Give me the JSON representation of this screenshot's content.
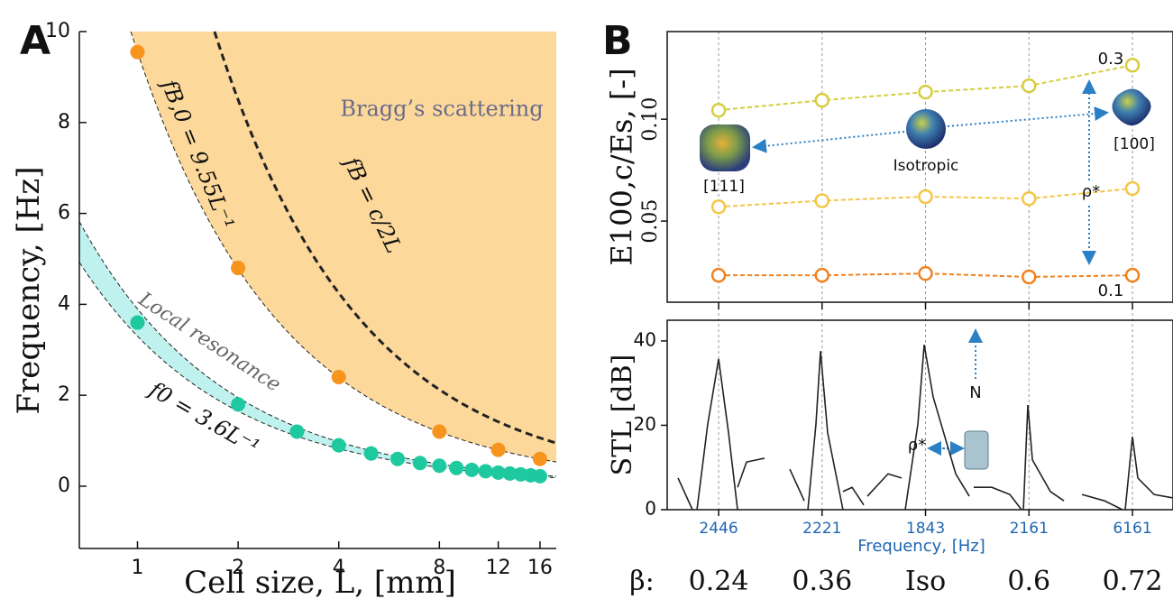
{
  "chart_data": [
    {
      "type": "scatter",
      "panel_label": "A",
      "xlabel": "Cell size, L, [mm]",
      "ylabel": "Frequency, [Hz]",
      "log_x": true,
      "xlim": [
        0.67,
        17.9
      ],
      "ylim": [
        -1.37,
        10
      ],
      "xticks": [
        1,
        2,
        4,
        8,
        12,
        16
      ],
      "yticks": [
        0,
        2,
        4,
        6,
        8,
        10
      ],
      "region_label": "Bragg’s scattering",
      "series": [
        {
          "color": "#f7941d",
          "x": [
            1,
            2,
            4,
            8,
            12,
            16
          ],
          "values": [
            9.55,
            4.8,
            2.4,
            1.2,
            0.8,
            0.6
          ]
        },
        {
          "color": "#1ec9a0",
          "x": [
            1,
            2,
            3,
            4,
            5,
            6,
            7,
            8,
            9,
            10,
            11,
            12,
            13,
            14,
            15,
            16
          ],
          "values": [
            3.6,
            1.8,
            1.2,
            0.9,
            0.72,
            0.6,
            0.51,
            0.45,
            0.4,
            0.36,
            0.33,
            0.3,
            0.28,
            0.26,
            0.24,
            0.22
          ]
        }
      ],
      "curves": [
        {
          "label": "fB,0 = 9.55L⁻¹",
          "coefficient": 9.55,
          "fill": "#fcd89b"
        },
        {
          "label": "fB = c/2L",
          "coefficient": 17
        }
      ],
      "band": {
        "label": "Local resonance",
        "formula_label": "f0 = 3.6L⁻¹",
        "upper": 3.9,
        "lower": 3.3,
        "fill": "#bff1ee"
      }
    },
    {
      "type": "line",
      "panel_label": "B",
      "ylabel": "E100,c/Es, [-]",
      "x": [
        0,
        1,
        2,
        3,
        4
      ],
      "xlim": [
        -0.497,
        4.392
      ],
      "ylim": [
        0.0102,
        0.143
      ],
      "yticks": [
        0.05,
        {
          "value": 0.1,
          "label": "0.10"
        }
      ],
      "annotations": [
        "[111]",
        "Isotropic",
        "[100]",
        "ρ*"
      ],
      "series": [
        {
          "name": "0.3",
          "color": "#d6cd3e",
          "values": [
            0.1044,
            0.1093,
            0.1133,
            0.1164,
            0.1265
          ]
        },
        {
          "color": "#f3c645",
          "values": [
            0.057,
            0.06,
            0.062,
            0.061,
            0.066
          ]
        },
        {
          "name": "0.1",
          "color": "#f0821e",
          "values": [
            0.0234,
            0.0234,
            0.0243,
            0.0226,
            0.0234
          ]
        }
      ]
    },
    {
      "type": "line",
      "ylabel": "STL [dB]",
      "xlabel": "Frequency, [Hz]",
      "xlim": [
        -0.497,
        4.392
      ],
      "ylim": [
        0,
        44.9
      ],
      "yticks": [
        0,
        20,
        40
      ],
      "xticks": [
        {
          "value": 0,
          "label": "2446"
        },
        {
          "value": 1,
          "label": "2221"
        },
        {
          "value": 2,
          "label": "1843"
        },
        {
          "value": 3,
          "label": "2161"
        },
        {
          "value": 4,
          "label": "6161"
        }
      ],
      "grid_x": true,
      "beta_title": "β:",
      "beta_labels": [
        "0.24",
        "0.36",
        "Iso",
        "0.6",
        "0.72"
      ],
      "annotations": [
        "ρ*",
        "N"
      ],
      "series": [
        {
          "color": "#222222",
          "x": [
            -0.392,
            -0.253,
            null,
            -0.209,
            -0.105,
            0,
            0.096,
            0.183,
            null,
            0.183,
            0.27,
            0.444,
            null,
            0.688,
            0.828,
            null,
            0.863,
            0.941,
            0.985,
            1.054,
            1.202,
            null,
            1.202,
            1.29,
            1.403,
            null,
            1.438,
            1.638,
            1.769,
            null,
            1.804,
            1.926,
            1.987,
            2.074,
            2.292,
            2.423,
            null,
            2.466,
            2.641,
            2.815,
            2.928,
            null,
            2.946,
            2.989,
            3.033,
            3.207,
            3.338,
            null,
            3.512,
            3.73,
            3.904,
            null,
            3.93,
            4,
            4.052,
            4.209,
            4.392
          ],
          "values": [
            7.5,
            0,
            null,
            0,
            20.3,
            35.7,
            18.2,
            0,
            null,
            5.3,
            11.3,
            12.2,
            null,
            9.6,
            2.1,
            null,
            0,
            20.3,
            37.6,
            18.2,
            0,
            null,
            4.3,
            5.3,
            1.1,
            null,
            3.2,
            8.5,
            7.5,
            null,
            0,
            20.3,
            39.1,
            26.7,
            8.5,
            3.2,
            null,
            5.3,
            5.3,
            3.6,
            0,
            null,
            0,
            24.8,
            11.8,
            4.3,
            2.1,
            null,
            3.6,
            2.1,
            0,
            null,
            0,
            17.3,
            7.5,
            3.6,
            2.8
          ]
        }
      ]
    }
  ]
}
